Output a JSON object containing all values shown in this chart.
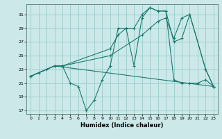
{
  "xlabel": "Humidex (Indice chaleur)",
  "bg_color": "#cce8e8",
  "grid_color": "#99cccc",
  "line_color": "#1a7a6e",
  "xlim": [
    -0.5,
    23.5
  ],
  "ylim": [
    16.5,
    32.5
  ],
  "yticks": [
    17,
    19,
    21,
    23,
    25,
    27,
    29,
    31
  ],
  "xticks": [
    0,
    1,
    2,
    3,
    4,
    5,
    6,
    7,
    8,
    9,
    10,
    11,
    12,
    13,
    14,
    15,
    16,
    17,
    18,
    19,
    20,
    21,
    22,
    23
  ],
  "series": [
    {
      "x": [
        0,
        1,
        2,
        3,
        4,
        5,
        6,
        7,
        8,
        9,
        10,
        11,
        12,
        13,
        14,
        15,
        16,
        17,
        18,
        19,
        20,
        21,
        22,
        23
      ],
      "y": [
        22,
        22.5,
        23,
        23.5,
        23.5,
        21,
        20.5,
        17,
        18.5,
        21.5,
        23.5,
        29,
        29,
        23.5,
        30.5,
        32,
        31.5,
        31.5,
        21.5,
        21,
        21,
        21,
        21.5,
        20.5
      ]
    },
    {
      "x": [
        0,
        3,
        4,
        10,
        11,
        12,
        13,
        14,
        15,
        16,
        17,
        18,
        19,
        20,
        22,
        23
      ],
      "y": [
        22,
        23.5,
        23.5,
        26,
        28,
        29,
        29,
        31,
        32,
        31.5,
        31.5,
        27,
        27.5,
        31,
        23,
        20.5
      ]
    },
    {
      "x": [
        0,
        3,
        4,
        10,
        14,
        15,
        16,
        17,
        18,
        19,
        20,
        22,
        23
      ],
      "y": [
        22,
        23.5,
        23.5,
        25,
        28,
        29,
        30,
        30.5,
        27.5,
        30.5,
        31,
        23,
        20.5
      ]
    },
    {
      "x": [
        0,
        3,
        23
      ],
      "y": [
        22,
        23.5,
        20.5
      ]
    }
  ]
}
